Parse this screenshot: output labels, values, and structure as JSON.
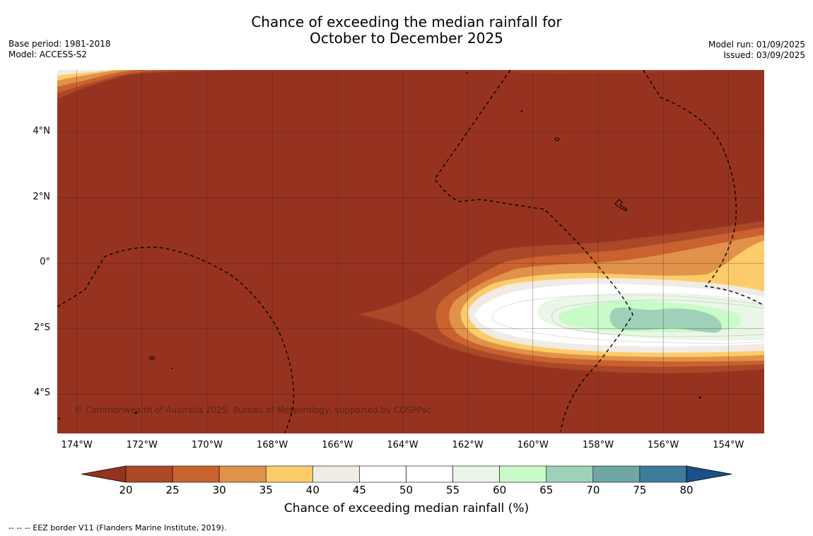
{
  "title": {
    "line1": "Chance of exceeding the median rainfall for",
    "line2": "October to December 2025"
  },
  "meta_left": {
    "base_period": "Base period: 1981-2018",
    "model": "Model: ACCESS-S2"
  },
  "meta_right": {
    "model_run": "Model run: 01/09/2025",
    "issued": "Issued: 03/09/2025"
  },
  "map": {
    "lon_range": [
      -174.6,
      -152.9
    ],
    "lat_range": [
      -5.2,
      5.9
    ],
    "lon_ticks": [
      {
        "value": -174,
        "label": "174°W"
      },
      {
        "value": -172,
        "label": "172°W"
      },
      {
        "value": -170,
        "label": "170°W"
      },
      {
        "value": -168,
        "label": "168°W"
      },
      {
        "value": -166,
        "label": "166°W"
      },
      {
        "value": -164,
        "label": "164°W"
      },
      {
        "value": -162,
        "label": "162°W"
      },
      {
        "value": -160,
        "label": "160°W"
      },
      {
        "value": -158,
        "label": "158°W"
      },
      {
        "value": -156,
        "label": "156°W"
      },
      {
        "value": -154,
        "label": "154°W"
      }
    ],
    "lat_ticks": [
      {
        "value": 4,
        "label": "4°N"
      },
      {
        "value": 2,
        "label": "2°N"
      },
      {
        "value": 0,
        "label": "0°"
      },
      {
        "value": -2,
        "label": "2°S"
      },
      {
        "value": -4,
        "label": "4°S"
      }
    ],
    "background_color": "#963320",
    "copyright": "© Commonwealth of Australia 2025, Bureau of Meteorology, supported by COSPPac"
  },
  "colorbar": {
    "ticks": [
      "20",
      "25",
      "30",
      "35",
      "40",
      "45",
      "50",
      "55",
      "60",
      "65",
      "70",
      "75",
      "80"
    ],
    "colors": [
      "#aa4828",
      "#c9622f",
      "#e0924a",
      "#fdcc6a",
      "#f0ebe5",
      "#ffffff",
      "#ffffff",
      "#ebf6e8",
      "#c8fbc8",
      "#9ed1b8",
      "#6fa6a6",
      "#3f7b9c"
    ],
    "under_color": "#963320",
    "over_color": "#1b4f89",
    "label": "Chance of exceeding median rainfall (%)"
  },
  "footnote": "--  --  -- EEZ border V11 (Flanders Marine Institute, 2019)."
}
